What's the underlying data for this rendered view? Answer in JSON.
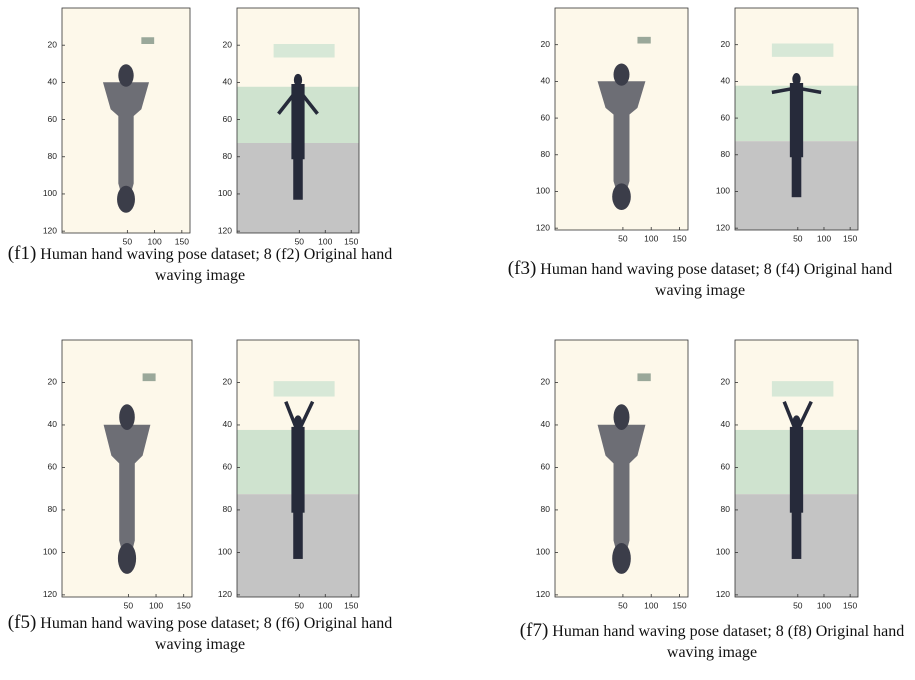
{
  "figure": {
    "xlim": [
      -70,
      165
    ],
    "ylim": [
      0,
      121
    ],
    "xticks": [
      50,
      100,
      150
    ],
    "yticks": [
      20,
      40,
      60,
      80,
      100,
      120
    ],
    "panels": [
      {
        "label": "(f1)",
        "text": "Human hand waving pose dataset; 8 (f2) Original hand waving image"
      },
      {
        "label": "(f3)",
        "text": "Human hand waving pose dataset; 8 (f4) Original hand waving image"
      },
      {
        "label": "(f5)",
        "text": "Human hand waving pose dataset; 8 (f6) Original hand waving image"
      },
      {
        "label": "(f7)",
        "text": "Human hand waving pose dataset; 8 (f8) Original hand waving image"
      }
    ]
  }
}
